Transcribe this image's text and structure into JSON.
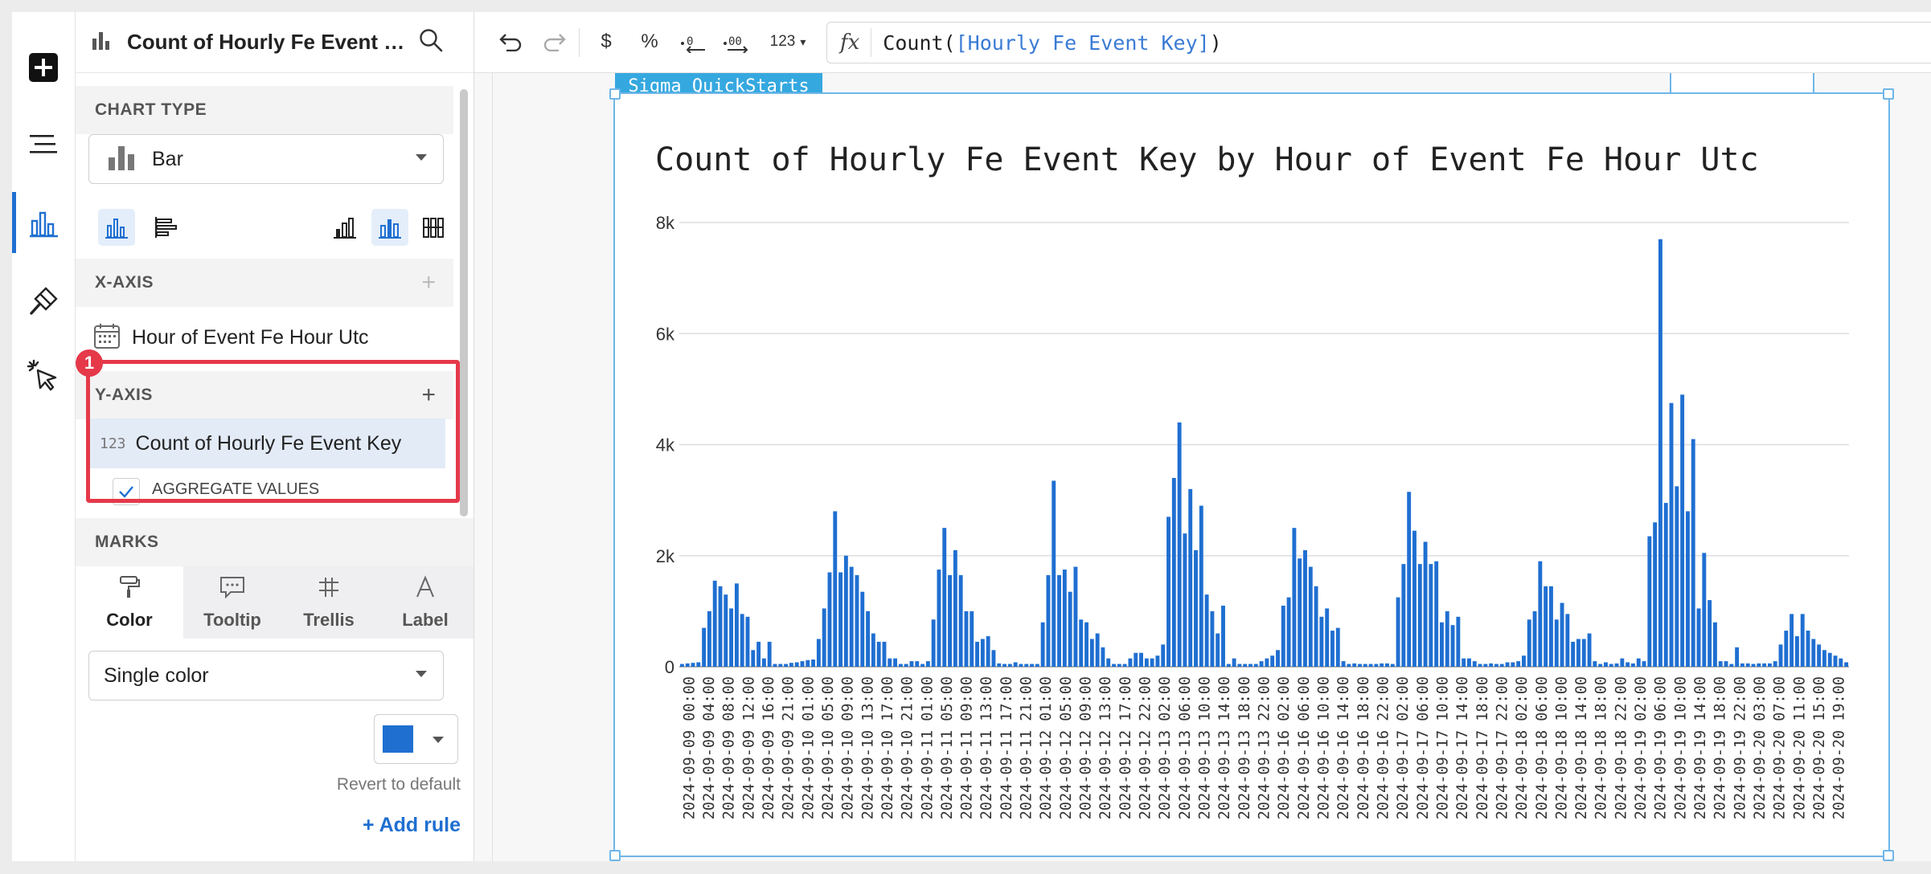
{
  "rail": {
    "icons": [
      "plus-icon",
      "outline-icon",
      "bar-chart-icon",
      "paint-icon",
      "action-cursor-icon"
    ]
  },
  "panel": {
    "title": "Count of Hourly Fe Event K...",
    "chart_type": {
      "heading": "CHART TYPE",
      "selected": "Bar"
    },
    "x_axis": {
      "heading": "X-AXIS",
      "field": "Hour of Event Fe Hour Utc"
    },
    "y_axis": {
      "heading": "Y-AXIS",
      "field_type": "123",
      "field": "Count of Hourly Fe Event Key",
      "aggregate_label": "AGGREGATE VALUES",
      "aggregate_checked": true,
      "callout_number": "1"
    },
    "marks": {
      "heading": "MARKS",
      "tabs": [
        {
          "label": "Color",
          "icon": "paint-roller-icon",
          "active": true
        },
        {
          "label": "Tooltip",
          "icon": "tooltip-icon",
          "active": false
        },
        {
          "label": "Trellis",
          "icon": "trellis-icon",
          "active": false
        },
        {
          "label": "Label",
          "icon": "label-icon",
          "active": false
        }
      ],
      "color_mode": "Single color",
      "swatch_color": "#1f6fd1",
      "revert_label": "Revert to default",
      "add_rule_label": "+ Add rule"
    }
  },
  "toolbar": {
    "currency_label": "$",
    "percent_label": "%",
    "format_label": "123",
    "fx_label": "fx",
    "formula_func": "Count(",
    "formula_arg": "[Hourly Fe Event Key]",
    "formula_close": ")"
  },
  "canvas": {
    "tag_label": "Sigma QuickStarts"
  },
  "colors": {
    "accent": "#1f6fd1",
    "callout": "#e5394a",
    "selection": "#6fb6e8"
  },
  "chart_data": {
    "type": "bar",
    "title": "Count of Hourly Fe Event Key by Hour of Event Fe Hour Utc",
    "xlabel": "",
    "ylabel": "",
    "ylim": [
      0,
      8000
    ],
    "yticks": [
      0,
      2000,
      4000,
      6000,
      8000
    ],
    "ytick_labels": [
      "0",
      "2k",
      "4k",
      "6k",
      "8k"
    ],
    "grid": true,
    "bar_color": "#1f6fd1",
    "x_tick_labels": [
      "2024-09-09 00:00",
      "2024-09-09 04:00",
      "2024-09-09 08:00",
      "2024-09-09 12:00",
      "2024-09-09 16:00",
      "2024-09-09 21:00",
      "2024-09-10 01:00",
      "2024-09-10 05:00",
      "2024-09-10 09:00",
      "2024-09-10 13:00",
      "2024-09-10 17:00",
      "2024-09-10 21:00",
      "2024-09-11 01:00",
      "2024-09-11 05:00",
      "2024-09-11 09:00",
      "2024-09-11 13:00",
      "2024-09-11 17:00",
      "2024-09-11 21:00",
      "2024-09-12 01:00",
      "2024-09-12 05:00",
      "2024-09-12 09:00",
      "2024-09-12 13:00",
      "2024-09-12 17:00",
      "2024-09-12 22:00",
      "2024-09-13 02:00",
      "2024-09-13 06:00",
      "2024-09-13 10:00",
      "2024-09-13 14:00",
      "2024-09-13 18:00",
      "2024-09-13 22:00",
      "2024-09-16 02:00",
      "2024-09-16 06:00",
      "2024-09-16 10:00",
      "2024-09-16 14:00",
      "2024-09-16 18:00",
      "2024-09-16 22:00",
      "2024-09-17 02:00",
      "2024-09-17 06:00",
      "2024-09-17 10:00",
      "2024-09-17 14:00",
      "2024-09-17 18:00",
      "2024-09-17 22:00",
      "2024-09-18 02:00",
      "2024-09-18 06:00",
      "2024-09-18 10:00",
      "2024-09-18 14:00",
      "2024-09-18 18:00",
      "2024-09-18 22:00",
      "2024-09-19 02:00",
      "2024-09-19 06:00",
      "2024-09-19 10:00",
      "2024-09-19 14:00",
      "2024-09-19 18:00",
      "2024-09-19 22:00",
      "2024-09-20 03:00",
      "2024-09-20 07:00",
      "2024-09-20 11:00",
      "2024-09-20 15:00",
      "2024-09-20 19:00"
    ],
    "values": [
      50,
      60,
      70,
      80,
      700,
      1000,
      1550,
      1450,
      1300,
      1050,
      1500,
      950,
      900,
      300,
      450,
      150,
      450,
      50,
      50,
      50,
      70,
      80,
      100,
      120,
      130,
      500,
      1050,
      1700,
      2800,
      1700,
      2000,
      1800,
      1650,
      1350,
      1000,
      600,
      450,
      450,
      150,
      150,
      50,
      50,
      100,
      100,
      50,
      100,
      850,
      1750,
      2500,
      1650,
      2100,
      1650,
      1000,
      1000,
      450,
      500,
      550,
      300,
      60,
      50,
      50,
      80,
      50,
      50,
      50,
      50,
      800,
      1650,
      3350,
      1650,
      1750,
      1350,
      1800,
      850,
      800,
      500,
      600,
      350,
      150,
      50,
      50,
      50,
      150,
      250,
      250,
      150,
      150,
      200,
      400,
      2700,
      3400,
      4400,
      2400,
      3200,
      2100,
      2900,
      1300,
      1000,
      600,
      1100,
      50,
      150,
      50,
      50,
      50,
      50,
      100,
      150,
      200,
      300,
      1100,
      1250,
      2500,
      1950,
      2100,
      1800,
      1450,
      900,
      1050,
      650,
      700,
      100,
      50,
      60,
      50,
      50,
      50,
      50,
      60,
      60,
      50,
      1250,
      1850,
      3150,
      2450,
      1850,
      2250,
      1850,
      1900,
      800,
      1000,
      750,
      900,
      150,
      150,
      100,
      50,
      50,
      60,
      50,
      50,
      80,
      80,
      100,
      200,
      850,
      1000,
      1900,
      1450,
      1450,
      850,
      1150,
      950,
      450,
      500,
      500,
      600,
      100,
      50,
      80,
      50,
      60,
      150,
      80,
      60,
      150,
      100,
      2350,
      2600,
      7700,
      2950,
      4750,
      3250,
      4900,
      2800,
      4100,
      1050,
      2050,
      1200,
      800,
      100,
      100,
      50,
      350,
      60,
      60,
      50,
      60,
      60,
      60,
      100,
      400,
      650,
      950,
      550,
      950,
      650,
      500,
      400,
      300,
      250,
      200,
      150,
      80
    ]
  }
}
